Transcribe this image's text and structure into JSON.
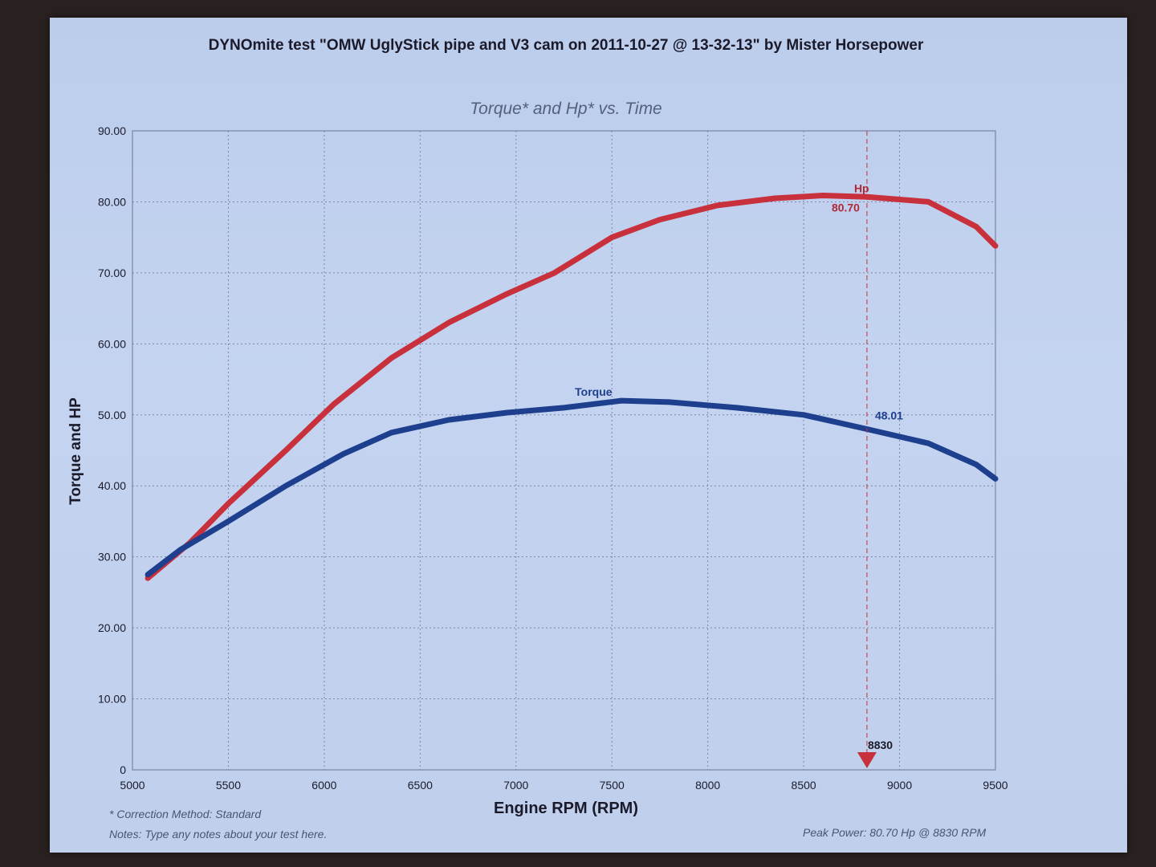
{
  "page": {
    "title": "DYNOmite test \"OMW UglyStick pipe and V3 cam on 2011-10-27 @ 13-32-13\" by Mister Horsepower",
    "correction_note": "* Correction Method: Standard",
    "notes": "Notes: Type any notes about your test here.",
    "peak_power": "Peak Power: 80.70 Hp @ 8830 RPM"
  },
  "chart_data": {
    "type": "line",
    "title": "Torque* and Hp* vs. Time",
    "xlabel": "Engine RPM (RPM)",
    "ylabel": "Torque and HP",
    "xlim": [
      5000,
      9500
    ],
    "ylim": [
      0,
      90
    ],
    "xticks": [
      "5000",
      "5500",
      "6000",
      "6500",
      "7000",
      "7500",
      "8000",
      "8500",
      "9000",
      "9500"
    ],
    "yticks": [
      "0",
      "10.00",
      "20.00",
      "30.00",
      "40.00",
      "50.00",
      "60.00",
      "70.00",
      "80.00",
      "90.00"
    ],
    "grid": true,
    "series": [
      {
        "name": "Hp",
        "color": "#c8303c",
        "x": [
          5080,
          5300,
          5500,
          5800,
          6050,
          6350,
          6650,
          6950,
          7200,
          7500,
          7750,
          8050,
          8350,
          8600,
          8830,
          9150,
          9400,
          9500
        ],
        "y": [
          27.0,
          32.0,
          37.5,
          45.0,
          51.5,
          58.0,
          63.0,
          67.0,
          70.0,
          75.0,
          77.5,
          79.5,
          80.5,
          80.9,
          80.7,
          80.0,
          76.5,
          73.8
        ]
      },
      {
        "name": "Torque",
        "color": "#1e3f8e",
        "x": [
          5080,
          5250,
          5500,
          5800,
          6100,
          6350,
          6650,
          6950,
          7250,
          7550,
          7800,
          8150,
          8500,
          8830,
          9150,
          9400,
          9500
        ],
        "y": [
          27.5,
          31.0,
          35.0,
          40.0,
          44.5,
          47.5,
          49.3,
          50.3,
          51.0,
          52.0,
          51.8,
          51.0,
          50.0,
          48.0,
          46.0,
          43.0,
          41.0
        ]
      }
    ],
    "annotations": {
      "hp_label": "Hp",
      "hp_value": "80.70",
      "torque_label": "Torque",
      "torque_value": "48.01",
      "marker_rpm": 8830,
      "marker_label": "8830"
    }
  }
}
